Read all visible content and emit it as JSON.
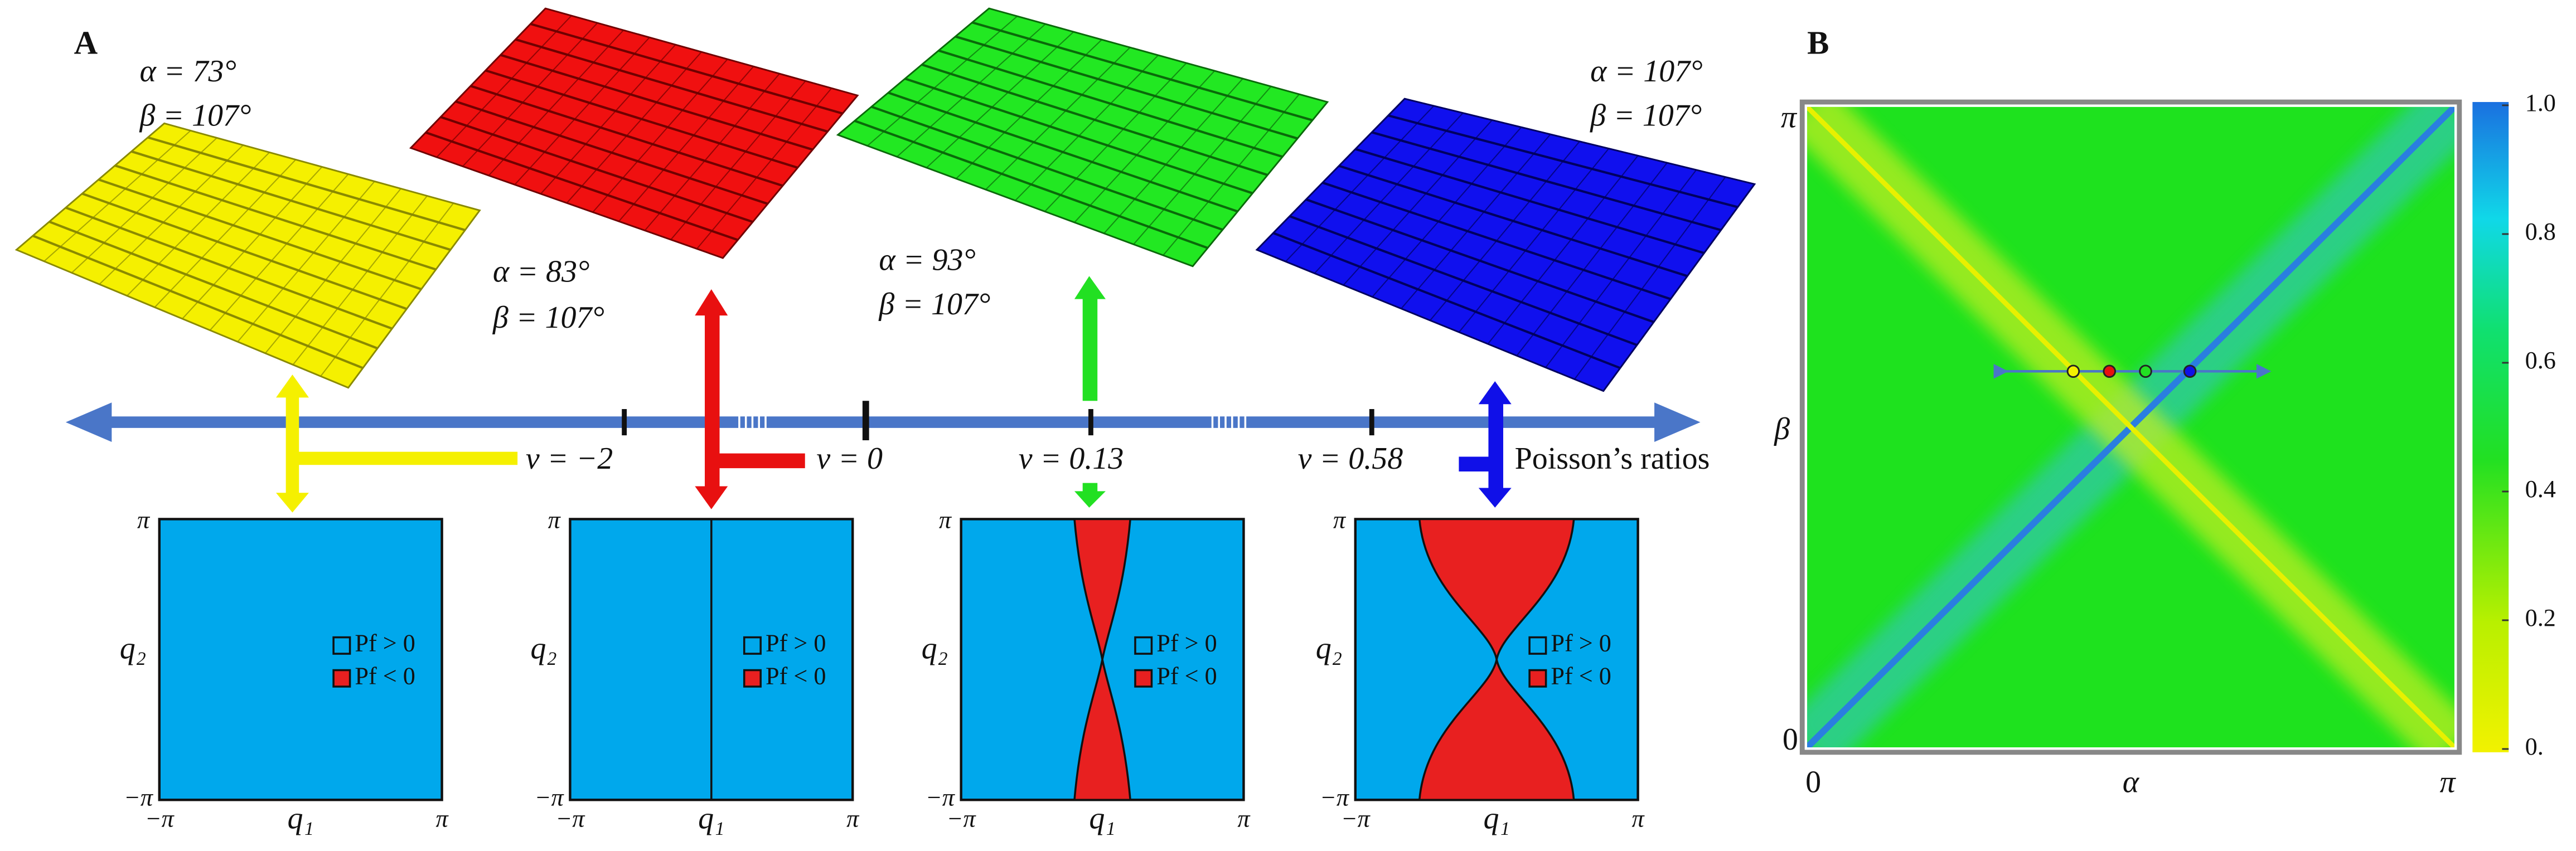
{
  "panel_a": {
    "label": "A",
    "sheets": [
      {
        "alpha": "α = 73°",
        "beta": "β = 107°"
      },
      {
        "alpha": "α = 83°",
        "beta": "β = 107°"
      },
      {
        "alpha": "α = 93°",
        "beta": "β = 107°"
      },
      {
        "alpha": "α = 107°",
        "beta": "β = 107°"
      }
    ],
    "ratios": [
      "ν = −2",
      "ν = 0",
      "ν = 0.13",
      "ν = 0.58"
    ],
    "axis_label": "Poisson’s ratios",
    "phase_diagrams": [
      {
        "y_top": "π",
        "y_bottom": "−π",
        "y_label": "q₂",
        "x_left": "−π",
        "x_mid": "q₁",
        "x_right": "π",
        "legend": [
          "Pf > 0",
          "Pf < 0"
        ]
      },
      {
        "y_top": "π",
        "y_bottom": "−π",
        "y_label": "q₂",
        "x_left": "−π",
        "x_mid": "q₁",
        "x_right": "π",
        "legend": [
          "Pf > 0",
          "Pf < 0"
        ]
      },
      {
        "y_top": "π",
        "y_bottom": "−π",
        "y_label": "q₂",
        "x_left": "−π",
        "x_mid": "q₁",
        "x_right": "π",
        "legend": [
          "Pf > 0",
          "Pf < 0"
        ]
      },
      {
        "y_top": "π",
        "y_bottom": "−π",
        "y_label": "q₂",
        "x_left": "−π",
        "x_mid": "q₁",
        "x_right": "π",
        "legend": [
          "Pf > 0",
          "Pf < 0"
        ]
      }
    ]
  },
  "panel_b": {
    "label": "B",
    "y_top": "π",
    "y_bottom": "0",
    "y_label": "β",
    "x_left": "0",
    "x_label": "α",
    "x_right": "π",
    "colorbar": [
      "1.0",
      "0.8",
      "0.6",
      "0.4",
      "0.2",
      "0."
    ]
  }
}
